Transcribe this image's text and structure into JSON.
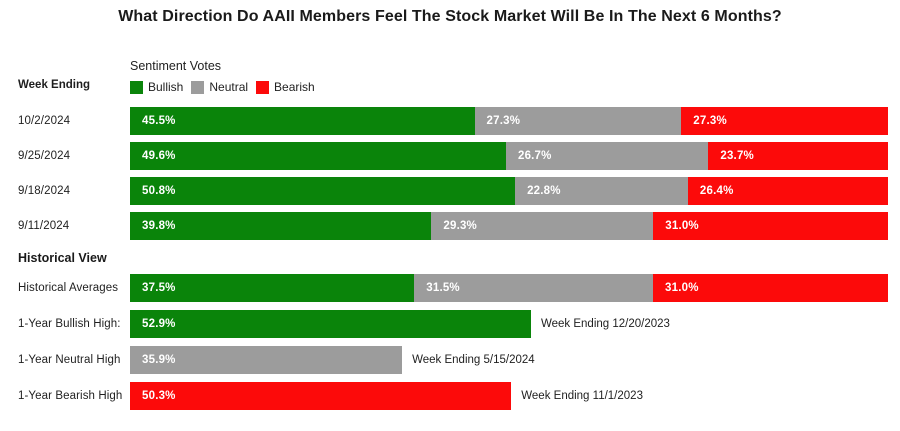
{
  "title": "What Direction Do AAII Members Feel The Stock Market Will Be In The Next 6 Months?",
  "left_header": "Week Ending",
  "legend": {
    "heading": "Sentiment Votes",
    "items": [
      {
        "label": "Bullish",
        "color": "#0a840a"
      },
      {
        "label": "Neutral",
        "color": "#9c9c9c"
      },
      {
        "label": "Bearish",
        "color": "#fc0a0a"
      }
    ]
  },
  "chart_data": {
    "type": "bar",
    "orientation": "horizontal-stacked",
    "series_names": [
      "Bullish",
      "Neutral",
      "Bearish"
    ],
    "value_unit": "%",
    "xlim": [
      0,
      100
    ],
    "grid": false,
    "legend_position": "top-left",
    "rows": [
      {
        "type": "stacked",
        "label": "10/2/2024",
        "values": {
          "Bullish": 45.5,
          "Neutral": 27.3,
          "Bearish": 27.3
        }
      },
      {
        "type": "stacked",
        "label": "9/25/2024",
        "values": {
          "Bullish": 49.6,
          "Neutral": 26.7,
          "Bearish": 23.7
        }
      },
      {
        "type": "stacked",
        "label": "9/18/2024",
        "values": {
          "Bullish": 50.8,
          "Neutral": 22.8,
          "Bearish": 26.4
        }
      },
      {
        "type": "stacked",
        "label": "9/11/2024",
        "values": {
          "Bullish": 39.8,
          "Neutral": 29.3,
          "Bearish": 31.0
        }
      },
      {
        "type": "section",
        "label": "Historical View"
      },
      {
        "type": "stacked",
        "label": "Historical Averages",
        "values": {
          "Bullish": 37.5,
          "Neutral": 31.5,
          "Bearish": 31.0
        }
      },
      {
        "type": "single",
        "label": "1-Year Bullish High:",
        "series": "Bullish",
        "value": 52.9,
        "annotation": "Week Ending 12/20/2023"
      },
      {
        "type": "single",
        "label": "1-Year Neutral High",
        "series": "Neutral",
        "value": 35.9,
        "annotation": "Week Ending 5/15/2024"
      },
      {
        "type": "single",
        "label": "1-Year Bearish High",
        "series": "Bearish",
        "value": 50.3,
        "annotation": "Week Ending 11/1/2023"
      }
    ]
  }
}
